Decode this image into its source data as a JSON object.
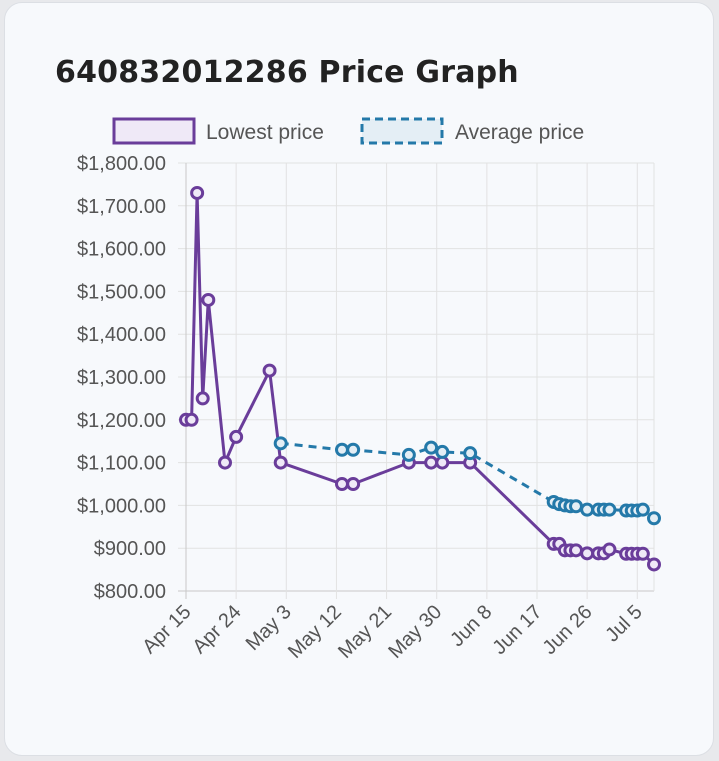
{
  "card": {
    "title": "640832012286 Price Graph"
  },
  "chart_data": {
    "type": "line",
    "title": "640832012286 Price Graph",
    "xlabel": "",
    "ylabel": "",
    "ylim": [
      800,
      1800
    ],
    "y_ticks": [
      "$800.00",
      "$900.00",
      "$1,000.00",
      "$1,100.00",
      "$1,200.00",
      "$1,300.00",
      "$1,400.00",
      "$1,500.00",
      "$1,600.00",
      "$1,700.00",
      "$1,800.00"
    ],
    "x_ticks": [
      "Apr 15",
      "Apr 24",
      "May 3",
      "May 12",
      "May 21",
      "May 30",
      "Jun 8",
      "Jun 17",
      "Jun 26",
      "Jul 5"
    ],
    "x_range_days": [
      0,
      84
    ],
    "grid": true,
    "legend": "top-center",
    "series": [
      {
        "name": "Lowest price",
        "color": "#6a3d9a",
        "fill": "#efe9f7",
        "dash": false,
        "points": [
          {
            "x": 0,
            "y": 1200
          },
          {
            "x": 1,
            "y": 1200
          },
          {
            "x": 2,
            "y": 1730
          },
          {
            "x": 3,
            "y": 1250
          },
          {
            "x": 4,
            "y": 1480
          },
          {
            "x": 7,
            "y": 1100
          },
          {
            "x": 9,
            "y": 1160
          },
          {
            "x": 15,
            "y": 1315
          },
          {
            "x": 17,
            "y": 1100
          },
          {
            "x": 28,
            "y": 1050
          },
          {
            "x": 30,
            "y": 1050
          },
          {
            "x": 40,
            "y": 1100
          },
          {
            "x": 44,
            "y": 1100
          },
          {
            "x": 46,
            "y": 1100
          },
          {
            "x": 51,
            "y": 1100
          },
          {
            "x": 66,
            "y": 910
          },
          {
            "x": 67,
            "y": 910
          },
          {
            "x": 68,
            "y": 895
          },
          {
            "x": 69,
            "y": 895
          },
          {
            "x": 70,
            "y": 895
          },
          {
            "x": 72,
            "y": 888
          },
          {
            "x": 74,
            "y": 888
          },
          {
            "x": 75,
            "y": 888
          },
          {
            "x": 76,
            "y": 897
          },
          {
            "x": 79,
            "y": 887
          },
          {
            "x": 80,
            "y": 887
          },
          {
            "x": 81,
            "y": 887
          },
          {
            "x": 82,
            "y": 887
          },
          {
            "x": 84,
            "y": 862
          }
        ]
      },
      {
        "name": "Average price",
        "color": "#2479a9",
        "fill": "#e4eef5",
        "dash": true,
        "points": [
          {
            "x": 17,
            "y": 1145
          },
          {
            "x": 28,
            "y": 1130
          },
          {
            "x": 30,
            "y": 1130
          },
          {
            "x": 40,
            "y": 1118
          },
          {
            "x": 44,
            "y": 1135
          },
          {
            "x": 46,
            "y": 1125
          },
          {
            "x": 51,
            "y": 1122
          },
          {
            "x": 66,
            "y": 1008
          },
          {
            "x": 67,
            "y": 1003
          },
          {
            "x": 68,
            "y": 1000
          },
          {
            "x": 69,
            "y": 998
          },
          {
            "x": 70,
            "y": 998
          },
          {
            "x": 72,
            "y": 990
          },
          {
            "x": 74,
            "y": 990
          },
          {
            "x": 75,
            "y": 990
          },
          {
            "x": 76,
            "y": 990
          },
          {
            "x": 79,
            "y": 988
          },
          {
            "x": 80,
            "y": 988
          },
          {
            "x": 81,
            "y": 988
          },
          {
            "x": 82,
            "y": 990
          },
          {
            "x": 84,
            "y": 970
          }
        ]
      }
    ]
  }
}
